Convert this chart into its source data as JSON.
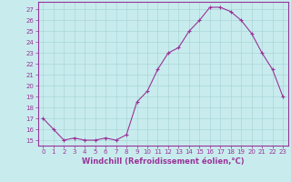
{
  "x": [
    0,
    1,
    2,
    3,
    4,
    5,
    6,
    7,
    8,
    9,
    10,
    11,
    12,
    13,
    14,
    15,
    16,
    17,
    18,
    19,
    20,
    21,
    22,
    23
  ],
  "y": [
    17,
    16,
    15,
    15.2,
    15,
    15,
    15.2,
    15,
    15.5,
    18.5,
    19.5,
    21.5,
    23,
    23.5,
    25,
    26,
    27.2,
    27.2,
    26.8,
    26,
    24.8,
    23,
    21.5,
    19
  ],
  "line_color": "#993399",
  "marker": "+",
  "background_color": "#c8eced",
  "grid_color": "#aad6d8",
  "axis_color": "#993399",
  "xlabel": "Windchill (Refroidissement éolien,°C)",
  "xlim": [
    -0.5,
    23.5
  ],
  "ylim": [
    14.5,
    27.7
  ],
  "yticks": [
    15,
    16,
    17,
    18,
    19,
    20,
    21,
    22,
    23,
    24,
    25,
    26,
    27
  ],
  "xticks": [
    0,
    1,
    2,
    3,
    4,
    5,
    6,
    7,
    8,
    9,
    10,
    11,
    12,
    13,
    14,
    15,
    16,
    17,
    18,
    19,
    20,
    21,
    22,
    23
  ],
  "tick_fontsize": 5.0,
  "xlabel_fontsize": 6.0,
  "line_width": 0.8,
  "marker_size": 3.0,
  "spine_color": "#993399"
}
